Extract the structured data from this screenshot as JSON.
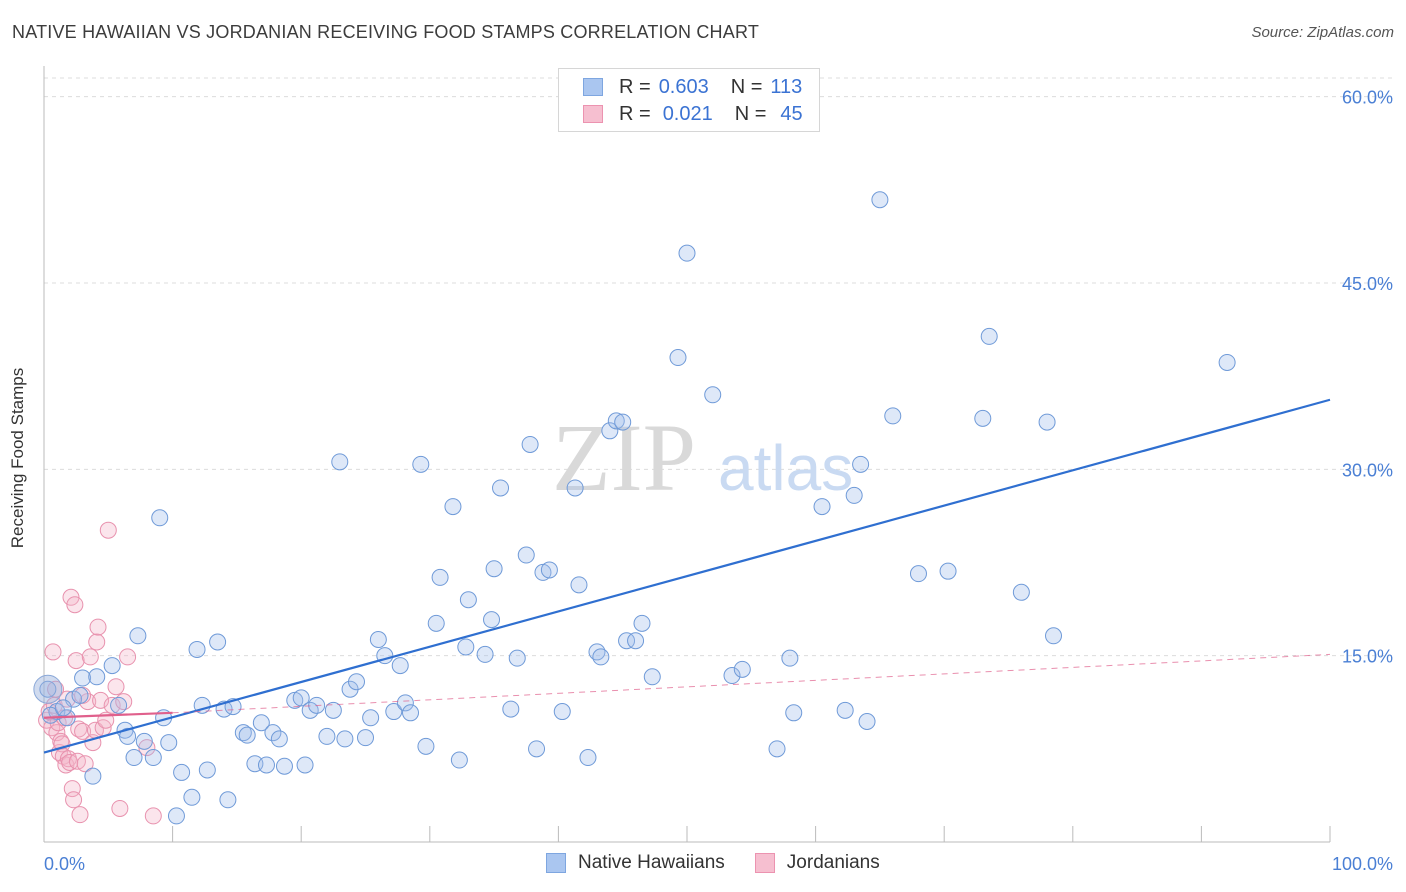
{
  "header": {
    "title": "NATIVE HAWAIIAN VS JORDANIAN RECEIVING FOOD STAMPS CORRELATION CHART",
    "source": "Source: ZipAtlas.com"
  },
  "watermark": {
    "zip": "ZIP",
    "atlas": "atlas"
  },
  "legend_top": {
    "rows": [
      {
        "r_label": "R =",
        "r_value": "0.603",
        "n_label": "N =",
        "n_value": "113",
        "color": "#aac6f0",
        "border": "#7ea6e0"
      },
      {
        "r_label": "R =",
        "r_value": "0.021",
        "n_label": "N =",
        "n_value": "45",
        "color": "#f6bfd0",
        "border": "#ec93b0"
      }
    ]
  },
  "legend_bottom": {
    "items": [
      {
        "label": "Native Hawaiians",
        "color": "#aac6f0",
        "border": "#7ea6e0"
      },
      {
        "label": "Jordanians",
        "color": "#f6bfd0",
        "border": "#ec93b0"
      }
    ]
  },
  "colors": {
    "blue_point_fill": "rgba(160,190,235,0.35)",
    "blue_point_stroke": "#6f9ad8",
    "pink_point_fill": "rgba(244,180,200,0.35)",
    "pink_point_stroke": "#e892ae",
    "blue_line": "#2f6fd0",
    "pink_line": "#e0608c",
    "grid": "#dcdcdc",
    "tick_text": "#4a7fd4"
  },
  "chart_data": {
    "type": "scatter",
    "title": "NATIVE HAWAIIAN VS JORDANIAN RECEIVING FOOD STAMPS CORRELATION CHART",
    "xlabel": "",
    "ylabel": "Receiving Food Stamps",
    "xlim": [
      0,
      100
    ],
    "ylim": [
      0,
      61.5
    ],
    "x_tick_labels": [
      "0.0%",
      "100.0%"
    ],
    "y_ticks": [
      15,
      30,
      45,
      60
    ],
    "y_tick_labels": [
      "15.0%",
      "30.0%",
      "45.0%",
      "60.0%"
    ],
    "grid": true,
    "legend_position": "top-center",
    "series": [
      {
        "name": "Native Hawaiians",
        "R": 0.603,
        "N": 113,
        "trend": {
          "x": [
            0,
            100
          ],
          "y": [
            7.2,
            35.6
          ],
          "style": "solid"
        },
        "points": [
          [
            0.3,
            12.3
          ],
          [
            1.0,
            10.5
          ],
          [
            2.3,
            11.5
          ],
          [
            1.8,
            10.0
          ],
          [
            3.0,
            13.2
          ],
          [
            3.8,
            5.3
          ],
          [
            4.1,
            13.3
          ],
          [
            5.3,
            14.2
          ],
          [
            5.8,
            11.0
          ],
          [
            6.3,
            9.0
          ],
          [
            6.5,
            8.5
          ],
          [
            7.0,
            6.8
          ],
          [
            7.3,
            16.6
          ],
          [
            7.8,
            8.1
          ],
          [
            8.5,
            6.8
          ],
          [
            9.0,
            26.1
          ],
          [
            9.3,
            10.0
          ],
          [
            9.7,
            8.0
          ],
          [
            10.3,
            2.1
          ],
          [
            10.7,
            5.6
          ],
          [
            11.5,
            3.6
          ],
          [
            11.9,
            15.5
          ],
          [
            12.3,
            11.0
          ],
          [
            12.7,
            5.8
          ],
          [
            13.5,
            16.1
          ],
          [
            14.0,
            10.7
          ],
          [
            14.3,
            3.4
          ],
          [
            14.7,
            10.9
          ],
          [
            15.5,
            8.8
          ],
          [
            15.8,
            8.6
          ],
          [
            16.4,
            6.3
          ],
          [
            16.9,
            9.6
          ],
          [
            17.3,
            6.2
          ],
          [
            17.8,
            8.8
          ],
          [
            18.3,
            8.3
          ],
          [
            18.7,
            6.1
          ],
          [
            19.5,
            11.4
          ],
          [
            20.0,
            11.6
          ],
          [
            20.3,
            6.2
          ],
          [
            20.7,
            10.6
          ],
          [
            21.2,
            11.0
          ],
          [
            22.0,
            8.5
          ],
          [
            22.5,
            10.6
          ],
          [
            23.0,
            30.6
          ],
          [
            23.4,
            8.3
          ],
          [
            23.8,
            12.3
          ],
          [
            24.3,
            12.9
          ],
          [
            25.0,
            8.4
          ],
          [
            25.4,
            10.0
          ],
          [
            26.0,
            16.3
          ],
          [
            26.5,
            15.0
          ],
          [
            27.2,
            10.5
          ],
          [
            27.7,
            14.2
          ],
          [
            28.1,
            11.2
          ],
          [
            28.5,
            10.4
          ],
          [
            29.3,
            30.4
          ],
          [
            29.7,
            7.7
          ],
          [
            30.5,
            17.6
          ],
          [
            30.8,
            21.3
          ],
          [
            31.8,
            27.0
          ],
          [
            32.3,
            6.6
          ],
          [
            32.8,
            15.7
          ],
          [
            33.0,
            19.5
          ],
          [
            34.3,
            15.1
          ],
          [
            34.8,
            17.9
          ],
          [
            35.0,
            22.0
          ],
          [
            35.5,
            28.5
          ],
          [
            36.3,
            10.7
          ],
          [
            36.8,
            14.8
          ],
          [
            37.5,
            23.1
          ],
          [
            37.8,
            32.0
          ],
          [
            38.3,
            7.5
          ],
          [
            38.8,
            21.7
          ],
          [
            39.3,
            21.9
          ],
          [
            40.3,
            10.5
          ],
          [
            41.3,
            28.5
          ],
          [
            41.6,
            20.7
          ],
          [
            42.3,
            6.8
          ],
          [
            43.0,
            15.3
          ],
          [
            43.3,
            14.9
          ],
          [
            44.0,
            33.1
          ],
          [
            44.5,
            33.9
          ],
          [
            45.0,
            33.8
          ],
          [
            45.3,
            16.2
          ],
          [
            46.0,
            16.2
          ],
          [
            46.5,
            17.6
          ],
          [
            47.3,
            13.3
          ],
          [
            49.3,
            39.0
          ],
          [
            50.0,
            47.4
          ],
          [
            52.0,
            36.0
          ],
          [
            53.5,
            13.4
          ],
          [
            54.3,
            13.9
          ],
          [
            57.0,
            7.5
          ],
          [
            58.0,
            14.8
          ],
          [
            58.3,
            10.4
          ],
          [
            60.5,
            27.0
          ],
          [
            62.3,
            10.6
          ],
          [
            63.0,
            27.9
          ],
          [
            63.5,
            30.4
          ],
          [
            64.0,
            9.7
          ],
          [
            65.0,
            51.7
          ],
          [
            66.0,
            34.3
          ],
          [
            68.0,
            21.6
          ],
          [
            70.3,
            21.8
          ],
          [
            73.0,
            34.1
          ],
          [
            73.5,
            40.7
          ],
          [
            76.0,
            20.1
          ],
          [
            78.0,
            33.8
          ],
          [
            78.5,
            16.6
          ],
          [
            92.0,
            38.6
          ],
          [
            0.5,
            10.2
          ],
          [
            1.5,
            10.8
          ],
          [
            2.8,
            11.8
          ]
        ]
      },
      {
        "name": "Jordanians",
        "R": 0.021,
        "N": 45,
        "trend": {
          "x": [
            0,
            10
          ],
          "y": [
            10.0,
            10.4
          ],
          "style": "solid",
          "extended": {
            "x": [
              10,
              100
            ],
            "y": [
              10.4,
              15.1
            ],
            "style": "dashed"
          }
        },
        "points": [
          [
            0.2,
            9.8
          ],
          [
            0.4,
            10.5
          ],
          [
            0.6,
            9.2
          ],
          [
            0.7,
            15.3
          ],
          [
            0.8,
            11.0
          ],
          [
            0.9,
            12.3
          ],
          [
            1.0,
            8.8
          ],
          [
            1.1,
            9.6
          ],
          [
            1.2,
            7.2
          ],
          [
            1.3,
            8.1
          ],
          [
            1.4,
            7.9
          ],
          [
            1.5,
            6.9
          ],
          [
            1.6,
            10.0
          ],
          [
            1.7,
            6.2
          ],
          [
            1.8,
            11.5
          ],
          [
            1.9,
            6.7
          ],
          [
            2.0,
            6.4
          ],
          [
            2.1,
            19.7
          ],
          [
            2.2,
            4.3
          ],
          [
            2.3,
            3.4
          ],
          [
            2.4,
            19.1
          ],
          [
            2.5,
            14.6
          ],
          [
            2.6,
            6.5
          ],
          [
            2.7,
            9.1
          ],
          [
            2.8,
            2.2
          ],
          [
            3.0,
            8.9
          ],
          [
            3.2,
            6.3
          ],
          [
            3.4,
            11.3
          ],
          [
            3.6,
            14.9
          ],
          [
            3.8,
            8.0
          ],
          [
            4.0,
            9.0
          ],
          [
            4.1,
            16.1
          ],
          [
            4.2,
            17.3
          ],
          [
            4.4,
            11.4
          ],
          [
            4.6,
            9.2
          ],
          [
            4.8,
            9.8
          ],
          [
            5.0,
            25.1
          ],
          [
            5.3,
            11.0
          ],
          [
            5.6,
            12.5
          ],
          [
            5.9,
            2.7
          ],
          [
            6.2,
            11.3
          ],
          [
            6.5,
            14.9
          ],
          [
            8.0,
            7.6
          ],
          [
            8.5,
            2.1
          ],
          [
            3.0,
            11.8
          ]
        ]
      }
    ]
  }
}
